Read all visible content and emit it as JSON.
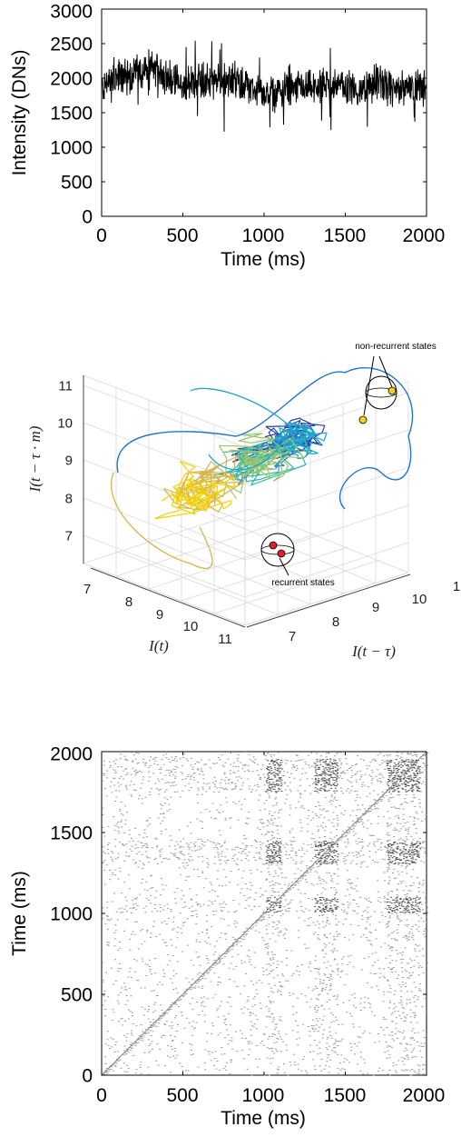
{
  "chart_data": [
    {
      "type": "line",
      "title": "",
      "xlabel": "Time (ms)",
      "ylabel": "Intensity (DNs)",
      "xlim": [
        0,
        2000
      ],
      "ylim": [
        0,
        3000
      ],
      "xticks": [
        "0",
        "500",
        "1000",
        "1500",
        "2000"
      ],
      "yticks": [
        "0",
        "500",
        "1000",
        "1500",
        "2000",
        "2500",
        "3000"
      ],
      "series": [
        {
          "color": "#000000",
          "x": [
            0,
            100,
            200,
            300,
            400,
            500,
            600,
            700,
            800,
            900,
            1000,
            1100,
            1200,
            1300,
            1400,
            1500,
            1600,
            1700,
            1800,
            1900,
            2000
          ],
          "y": [
            1850,
            2000,
            2050,
            2150,
            2050,
            1850,
            2000,
            1950,
            1950,
            1900,
            1750,
            1800,
            1850,
            1850,
            1900,
            1900,
            1800,
            1950,
            1800,
            1900,
            1850
          ]
        }
      ],
      "grid": false
    },
    {
      "type": "line",
      "subtype": "3d-trajectory",
      "title": "",
      "xlabel": "I(t)",
      "ylabel": "I(t − τ)",
      "zlabel": "I(t − τ · m)",
      "x_ticks": [
        "7",
        "8",
        "9",
        "10",
        "11"
      ],
      "y_ticks": [
        "7",
        "8",
        "9",
        "10",
        "1"
      ],
      "z_ticks": [
        "7",
        "8",
        "9",
        "10",
        "11"
      ],
      "colormap": [
        "#2c3e9e",
        "#1f77c9",
        "#1ba7c9",
        "#3ab8a5",
        "#9cc46b",
        "#d6b54e",
        "#f5d000"
      ],
      "annotations": [
        {
          "text": "non-recurrent states",
          "marker_color": "#f2d21b"
        },
        {
          "text": "recurrent states",
          "marker_color": "#e0202a"
        }
      ],
      "grid": true
    },
    {
      "type": "heatmap",
      "subtype": "recurrence-plot",
      "title": "",
      "xlabel": "Time (ms)",
      "ylabel": "Time (ms)",
      "xlim": [
        0,
        2000
      ],
      "ylim": [
        0,
        2000
      ],
      "xticks": [
        "0",
        "500",
        "1000",
        "1500",
        "2000"
      ],
      "yticks": [
        "0",
        "500",
        "1000",
        "1500",
        "2000"
      ],
      "dense_blocks_ms": [
        [
          1000,
          1100
        ],
        [
          1300,
          1450
        ],
        [
          1750,
          1950
        ]
      ],
      "grid": false
    }
  ]
}
